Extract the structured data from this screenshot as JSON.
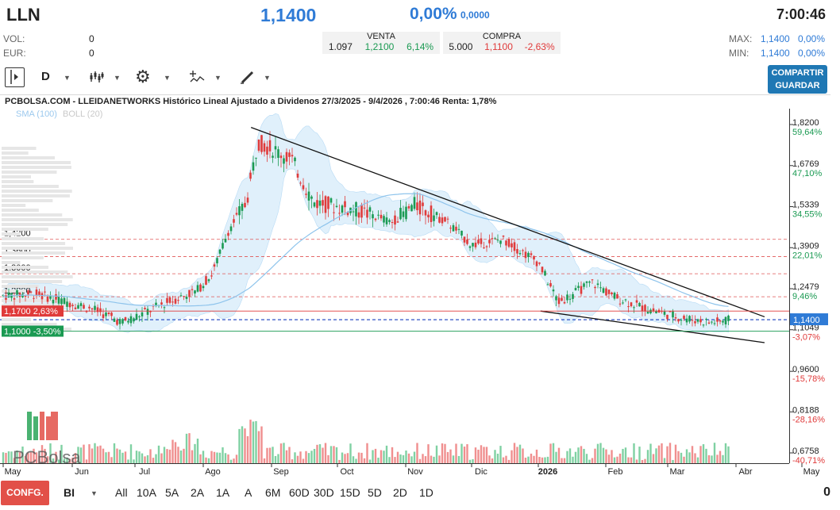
{
  "header": {
    "ticker": "LLN",
    "price": "1,1400",
    "change_pct": "0,00%",
    "change_abs": "0,0000",
    "time": "7:00:46",
    "vol_label": "VOL:",
    "vol_value": "0",
    "eur_label": "EUR:",
    "eur_value": "0",
    "max_label": "MAX:",
    "max_value": "1,1400",
    "max_pct": "0,00%",
    "min_label": "MIN:",
    "min_value": "1,1400",
    "min_pct": "0,00%"
  },
  "quote": {
    "venta_label": "VENTA",
    "venta_qty": "1.097",
    "venta_price": "1,2100",
    "venta_pct": "6,14%",
    "compra_label": "COMPRA",
    "compra_qty": "5.000",
    "compra_price": "1,1100",
    "compra_pct": "-2,63%"
  },
  "toolbar": {
    "period_label": "D",
    "share_label": "COMPARTIR",
    "save_label": "GUARDAR",
    "icons": [
      "panel-toggle-icon",
      "candles-icon",
      "gear-icon",
      "indicators-icon",
      "draw-pencil-icon"
    ]
  },
  "bottom": {
    "config_label": "CONFG.",
    "mode_label": "BI",
    "periods": [
      "All",
      "10A",
      "5A",
      "2A",
      "1A",
      "A",
      "6M",
      "60D",
      "30D",
      "15D",
      "5D",
      "2D",
      "1D"
    ],
    "right_value": "0"
  },
  "colors": {
    "up": "#1a9a52",
    "down": "#e03a3a",
    "accent": "#2f7bd6",
    "band": "#d6ebfa",
    "sma": "#8ec4ec"
  },
  "chart_data": {
    "type": "candlestick",
    "title": "PCBOLSA.COM - LLEIDANETWORKS Histórico Lineal Ajustado a Dividenos 27/3/2025 - 9/4/2026 , 7:00:46 Renta: 1,78%",
    "legend": [
      "SMA (100)",
      "BOLL (20)"
    ],
    "watermark": "PCBolsa",
    "ylim": [
      0.66,
      1.85
    ],
    "y_ticks": [
      {
        "value": 1.82,
        "label": "1,8200",
        "pct": "59,64%"
      },
      {
        "value": 1.6769,
        "label": "1,6769",
        "pct": "47,10%"
      },
      {
        "value": 1.5339,
        "label": "1,5339",
        "pct": "34,55%"
      },
      {
        "value": 1.3909,
        "label": "1,3909",
        "pct": "22,01%"
      },
      {
        "value": 1.2479,
        "label": "1,2479",
        "pct": "9,46%"
      },
      {
        "value": 1.1049,
        "label": "1,1049",
        "pct": "-3,07%"
      },
      {
        "value": 0.96,
        "label": "0,9600",
        "pct": "-15,78%"
      },
      {
        "value": 0.8188,
        "label": "0,8188",
        "pct": "-28,16%"
      },
      {
        "value": 0.6758,
        "label": "0,6758",
        "pct": "-40,71%"
      }
    ],
    "current_price": {
      "value": 1.14,
      "label": "1,1400"
    },
    "levels": [
      {
        "value": 1.42,
        "label": "1,4200"
      },
      {
        "value": 1.36,
        "label": "1,3600"
      },
      {
        "value": 1.3,
        "label": "1,3000"
      },
      {
        "value": 1.22,
        "label": "1,2200"
      }
    ],
    "price_tags": [
      {
        "value": 1.17,
        "label": "1,1700",
        "pct": "2,63%",
        "color": "red"
      },
      {
        "value": 1.1,
        "label": "1,1000",
        "pct": "-3,50%",
        "color": "green"
      }
    ],
    "x_labels": [
      "May",
      "Jun",
      "Jul",
      "Ago",
      "Sep",
      "Oct",
      "Nov",
      "Dic",
      "2026",
      "Feb",
      "Mar",
      "Abr",
      "May"
    ],
    "trendlines": [
      {
        "from": [
          "2025-08-22",
          1.81
        ],
        "to": [
          "2026-04-14",
          1.15
        ]
      },
      {
        "from": [
          "2026-01-02",
          1.17
        ],
        "to": [
          "2026-04-14",
          1.06
        ]
      }
    ],
    "anchors": [
      {
        "date": "2025-04-01",
        "close": 1.22
      },
      {
        "date": "2025-05-15",
        "close": 1.23
      },
      {
        "date": "2025-06-10",
        "close": 1.18
      },
      {
        "date": "2025-06-25",
        "close": 1.13
      },
      {
        "date": "2025-07-15",
        "close": 1.2
      },
      {
        "date": "2025-07-28",
        "close": 1.24
      },
      {
        "date": "2025-08-05",
        "close": 1.3
      },
      {
        "date": "2025-08-12",
        "close": 1.45
      },
      {
        "date": "2025-08-20",
        "close": 1.55
      },
      {
        "date": "2025-08-25",
        "close": 1.76
      },
      {
        "date": "2025-09-10",
        "close": 1.7
      },
      {
        "date": "2025-09-20",
        "close": 1.55
      },
      {
        "date": "2025-10-10",
        "close": 1.52
      },
      {
        "date": "2025-10-25",
        "close": 1.48
      },
      {
        "date": "2025-11-05",
        "close": 1.54
      },
      {
        "date": "2025-11-20",
        "close": 1.48
      },
      {
        "date": "2025-12-01",
        "close": 1.4
      },
      {
        "date": "2025-12-15",
        "close": 1.42
      },
      {
        "date": "2025-12-31",
        "close": 1.34
      },
      {
        "date": "2026-01-10",
        "close": 1.2
      },
      {
        "date": "2026-01-25",
        "close": 1.27
      },
      {
        "date": "2026-02-05",
        "close": 1.22
      },
      {
        "date": "2026-02-20",
        "close": 1.18
      },
      {
        "date": "2026-03-05",
        "close": 1.15
      },
      {
        "date": "2026-03-20",
        "close": 1.13
      },
      {
        "date": "2026-04-01",
        "close": 1.14
      },
      {
        "date": "2026-04-09",
        "close": 1.14
      }
    ]
  }
}
